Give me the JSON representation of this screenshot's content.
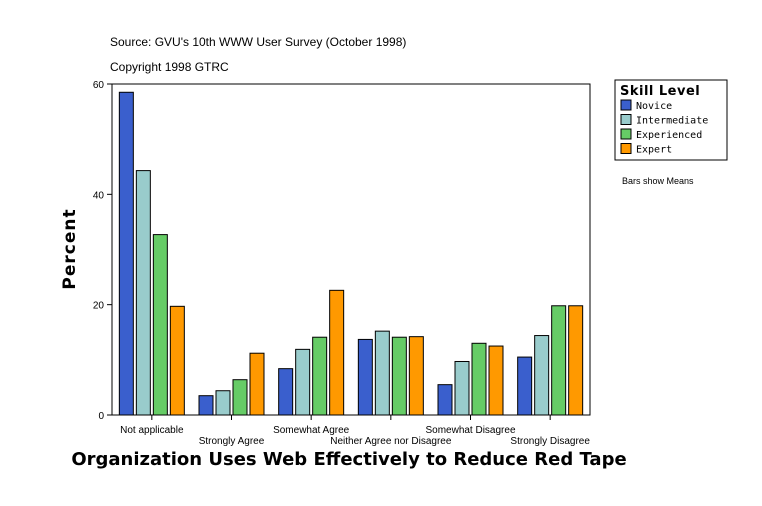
{
  "source_line": "Source: GVU's 10th WWW User Survey (October 1998)",
  "copyright_line": "Copyright 1998 GTRC",
  "note": "Bars show Means",
  "chart_data": {
    "type": "bar",
    "xlabel": "Organization Uses Web Effectively to Reduce Red Tape",
    "ylabel": "Percent",
    "ylim": [
      0,
      60
    ],
    "yticks": [
      0,
      20,
      40,
      60
    ],
    "grid": false,
    "legend": {
      "title": "Skill Level",
      "placement": "top-right"
    },
    "categories": [
      "Not applicable",
      "Strongly Agree",
      "Somewhat Agree",
      "Neither Agree nor Disagree",
      "Somewhat Disagree",
      "Strongly Disagree"
    ],
    "series": [
      {
        "name": "Novice",
        "color": "#3a5fcd",
        "values": [
          58.5,
          3.5,
          8.4,
          13.7,
          5.5,
          10.5
        ]
      },
      {
        "name": "Intermediate",
        "color": "#99cccc",
        "values": [
          44.3,
          4.4,
          11.9,
          15.2,
          9.7,
          14.4
        ]
      },
      {
        "name": "Experienced",
        "color": "#66cc66",
        "values": [
          32.7,
          6.4,
          14.1,
          14.1,
          13.0,
          19.8
        ]
      },
      {
        "name": "Expert",
        "color": "#ff9900",
        "values": [
          19.7,
          11.2,
          22.6,
          14.2,
          12.5,
          19.8
        ]
      }
    ]
  }
}
